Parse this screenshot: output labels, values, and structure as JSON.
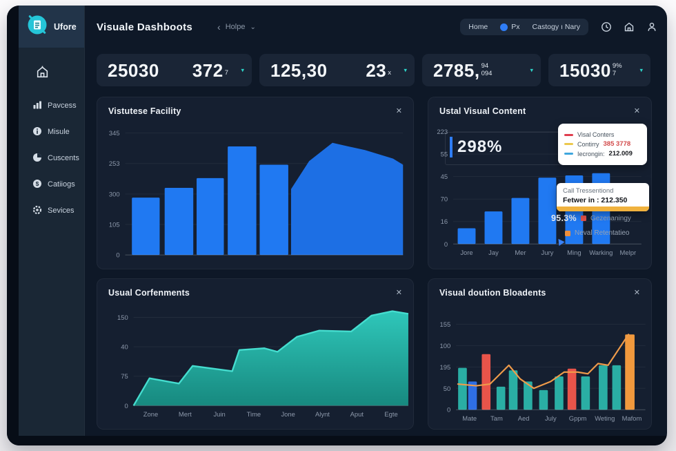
{
  "brand": {
    "name": "Ufore"
  },
  "header": {
    "title": "Visuale Dashboots",
    "breadcrumb": {
      "back": "‹",
      "label": "Holpe",
      "caret": "⌄"
    },
    "nav_items": [
      {
        "label": "Home",
        "icon": null
      },
      {
        "label": "Px",
        "icon": "blue-dot"
      },
      {
        "label": "Castogy ı Nary",
        "icon": null
      }
    ],
    "action_icons": [
      "clock",
      "home",
      "user"
    ]
  },
  "sidebar": {
    "items": [
      {
        "label": "Pavcess",
        "icon": "chart-bars"
      },
      {
        "label": "Misule",
        "icon": "info-circle"
      },
      {
        "label": "Cuscents",
        "icon": "pie-chart"
      },
      {
        "label": "Catiiogs",
        "icon": "dollar-circle"
      },
      {
        "label": "Sevices",
        "icon": "gear-circle"
      }
    ]
  },
  "kpis": [
    {
      "values": [
        {
          "main": "25030"
        },
        {
          "main": "372",
          "sub": "7"
        }
      ],
      "arrow": "▾"
    },
    {
      "values": [
        {
          "main": "125,30"
        },
        {
          "main": "23",
          "sub": "x"
        }
      ],
      "arrow": "▾"
    },
    {
      "values": [
        {
          "main": "2785,",
          "sup": "94",
          "sub": "094"
        }
      ],
      "arrow": "▾"
    },
    {
      "values": [
        {
          "main": "15030",
          "sup": "9%",
          "sub": "7"
        }
      ],
      "arrow": "▾"
    }
  ],
  "panels": [
    {
      "title": "Vistutese Facility",
      "close": "✕"
    },
    {
      "title": "Ustal Visual Content",
      "close": "✕"
    },
    {
      "title": "Usual Corfenments",
      "close": "✕"
    },
    {
      "title": "Visual doution Bloadents",
      "close": "✕"
    }
  ],
  "chart_data": [
    {
      "type": "bar+area",
      "title": "Vistutese Facility",
      "ylabels": [
        "345",
        "253",
        "300",
        "105",
        "0"
      ],
      "grid": true,
      "bars": {
        "mode": "xy",
        "color": "#2079f2",
        "items": [
          {
            "x": 0.024,
            "w": 0.1,
            "v": 0.47
          },
          {
            "x": 0.142,
            "w": 0.103,
            "v": 0.55
          },
          {
            "x": 0.257,
            "w": 0.098,
            "v": 0.63
          },
          {
            "x": 0.369,
            "w": 0.103,
            "v": 0.89
          },
          {
            "x": 0.484,
            "w": 0.103,
            "v": 0.74
          }
        ]
      },
      "area": {
        "fill": "#1d6fe4",
        "xs": [
          0.597,
          0.662,
          0.746,
          0.803,
          0.863,
          0.964,
          1.0
        ],
        "vs": [
          0.54,
          0.77,
          0.92,
          0.89,
          0.86,
          0.79,
          0.74
        ]
      }
    },
    {
      "type": "bar",
      "title": "Ustal Visual Content",
      "ylabels": [
        "223",
        "55",
        "45",
        "70",
        "16",
        "0"
      ],
      "xlabels": [
        "Jore",
        "Jay",
        "Mer",
        "Jury",
        "Ming",
        "Warking",
        "Melpr"
      ],
      "bars": {
        "mode": "cat",
        "color": "#2079f2",
        "width": 0.095,
        "values": [
          0.14,
          0.29,
          0.41,
          0.59,
          0.61,
          0.63,
          0
        ]
      },
      "overlay": {
        "big_label": "298%",
        "tooltip_legend": {
          "items": [
            {
              "color": "#e03e4e",
              "label": "Visal Conters",
              "value": "",
              "value_color": ""
            },
            {
              "color": "#ecc84d",
              "label": "Contirry",
              "value": "385 3778",
              "value_color": "#d24949"
            },
            {
              "color": "#3fa7dd",
              "label": "Iecrongin:",
              "value": "212.009",
              "value_color": "#15171c"
            }
          ]
        },
        "tooltip_info": {
          "line1": "Call Tressentiond",
          "line2": "Fetwer in : 212.350"
        },
        "stats": {
          "pct": "95.3%",
          "legend1": "Gezenaningy",
          "legend1_color": "#e0524a",
          "legend2": "Neval Retentatieo",
          "legend2_color": "#ef8f3c"
        }
      }
    },
    {
      "type": "area",
      "title": "Usual Corfenments",
      "ylabels": [
        "150",
        "40",
        "75",
        "0"
      ],
      "xlabels": [
        "Zone",
        "Mert",
        "Juin",
        "Time",
        "Jone",
        "Alynt",
        "Aput",
        "Egte"
      ],
      "area": {
        "fill": [
          "#2fc7ba",
          "#17897f"
        ],
        "stroke": "#45ddcf",
        "xs": [
          0,
          0.058,
          0.165,
          0.215,
          0.359,
          0.385,
          0.476,
          0.524,
          0.595,
          0.676,
          0.792,
          0.866,
          0.942,
          1
        ],
        "vs": [
          0,
          0.31,
          0.25,
          0.45,
          0.39,
          0.63,
          0.65,
          0.61,
          0.78,
          0.85,
          0.84,
          1.02,
          1.07,
          1.04
        ]
      }
    },
    {
      "type": "bar+line",
      "title": "Visual doution Bloadents",
      "ylabels": [
        "155",
        "100",
        "195",
        "50",
        "0"
      ],
      "xlabels": [
        "Mate",
        "Tam",
        "Aed",
        "July",
        "Gppm",
        "Weting",
        "Mafom"
      ],
      "bars": {
        "mode": "xy",
        "items": [
          {
            "x": 0.011,
            "w": 0.046,
            "v": 0.49,
            "color": "#2aaea4"
          },
          {
            "x": 0.064,
            "w": 0.046,
            "v": 0.33,
            "color": "#2f6fe4"
          },
          {
            "x": 0.136,
            "w": 0.046,
            "v": 0.65,
            "color": "#e8544a"
          },
          {
            "x": 0.214,
            "w": 0.046,
            "v": 0.27,
            "color": "#2aaea4"
          },
          {
            "x": 0.279,
            "w": 0.046,
            "v": 0.46,
            "color": "#2aaea4"
          },
          {
            "x": 0.357,
            "w": 0.046,
            "v": 0.33,
            "color": "#2aaea4"
          },
          {
            "x": 0.439,
            "w": 0.046,
            "v": 0.23,
            "color": "#2aaea4"
          },
          {
            "x": 0.521,
            "w": 0.046,
            "v": 0.39,
            "color": "#2aaea4"
          },
          {
            "x": 0.589,
            "w": 0.046,
            "v": 0.48,
            "color": "#e8544a"
          },
          {
            "x": 0.661,
            "w": 0.046,
            "v": 0.39,
            "color": "#2aaea4"
          },
          {
            "x": 0.754,
            "w": 0.046,
            "v": 0.52,
            "color": "#2aaea4"
          },
          {
            "x": 0.825,
            "w": 0.046,
            "v": 0.52,
            "color": "#2aaea4"
          },
          {
            "x": 0.893,
            "w": 0.05,
            "v": 0.88,
            "color": "#f1993d"
          }
        ]
      },
      "line": {
        "color": "#ef9b4a",
        "xs": [
          0.01,
          0.107,
          0.179,
          0.279,
          0.339,
          0.411,
          0.5,
          0.571,
          0.643,
          0.696,
          0.75,
          0.803,
          0.857,
          0.911
        ],
        "vs": [
          0.3,
          0.28,
          0.3,
          0.52,
          0.36,
          0.25,
          0.33,
          0.44,
          0.44,
          0.42,
          0.54,
          0.52,
          0.7,
          0.88
        ]
      }
    }
  ],
  "colors": {
    "accent_teal": "#2dd3c8",
    "bar_blue": "#2079f2",
    "teal": "#2aaea4",
    "red": "#e8544a",
    "orange": "#f1993d",
    "panel": "#151f30",
    "background": "#0e1827"
  }
}
